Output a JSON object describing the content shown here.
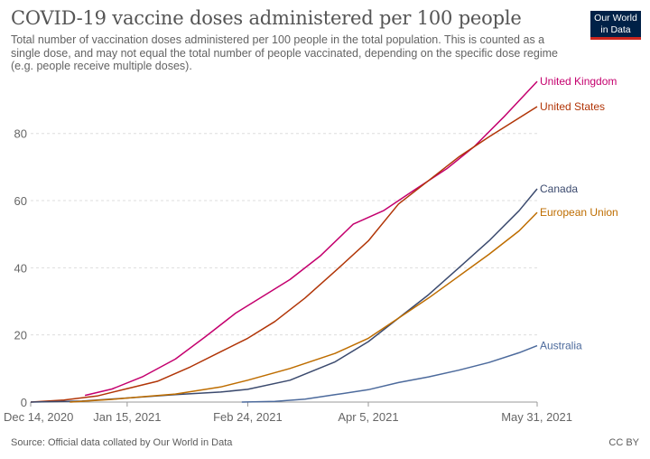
{
  "header": {
    "title": "COVID-19 vaccine doses administered per 100 people",
    "subtitle": "Total number of vaccination doses administered per 100 people in the total population. This is counted as a single dose, and may not equal the total number of people vaccinated, depending on the specific dose regime (e.g. people receive multiple doses)."
  },
  "logo": {
    "line1": "Our World",
    "line2": "in Data",
    "background": "#002147",
    "accent": "#ce261e"
  },
  "footer": {
    "source": "Source: Official data collated by Our World in Data",
    "license": "CC BY"
  },
  "chart_data": {
    "type": "line",
    "title": "COVID-19 vaccine doses administered per 100 people",
    "xlabel": "",
    "ylabel": "",
    "x_range": [
      "2020-12-14",
      "2021-05-31"
    ],
    "ylim": [
      0,
      95
    ],
    "y_ticks": [
      0,
      20,
      40,
      60,
      80
    ],
    "x_ticks": [
      {
        "date": "2020-12-14",
        "label": "Dec 14, 2020"
      },
      {
        "date": "2021-01-15",
        "label": "Jan 15, 2021"
      },
      {
        "date": "2021-02-24",
        "label": "Feb 24, 2021"
      },
      {
        "date": "2021-04-05",
        "label": "Apr 5, 2021"
      },
      {
        "date": "2021-05-31",
        "label": "May 31, 2021"
      }
    ],
    "grid": "horizontal dashed",
    "legend": "line-end labels",
    "series": [
      {
        "name": "United Kingdom",
        "color": "#c4006e",
        "points": [
          [
            "2021-01-01",
            2.0
          ],
          [
            "2021-01-10",
            3.9
          ],
          [
            "2021-01-20",
            7.5
          ],
          [
            "2021-01-31",
            12.8
          ],
          [
            "2021-02-10",
            19.5
          ],
          [
            "2021-02-20",
            26.5
          ],
          [
            "2021-03-01",
            31.5
          ],
          [
            "2021-03-10",
            36.5
          ],
          [
            "2021-03-20",
            43.5
          ],
          [
            "2021-03-31",
            53.0
          ],
          [
            "2021-04-10",
            57.0
          ],
          [
            "2021-04-20",
            63.0
          ],
          [
            "2021-05-01",
            69.5
          ],
          [
            "2021-05-10",
            76.0
          ],
          [
            "2021-05-20",
            85.0
          ],
          [
            "2021-05-31",
            95.5
          ]
        ]
      },
      {
        "name": "United States",
        "color": "#b13507",
        "points": [
          [
            "2020-12-14",
            0.0
          ],
          [
            "2020-12-25",
            0.6
          ],
          [
            "2021-01-05",
            1.8
          ],
          [
            "2021-01-15",
            4.0
          ],
          [
            "2021-01-25",
            6.2
          ],
          [
            "2021-02-05",
            10.5
          ],
          [
            "2021-02-15",
            15.0
          ],
          [
            "2021-02-24",
            19.0
          ],
          [
            "2021-03-05",
            24.0
          ],
          [
            "2021-03-15",
            31.0
          ],
          [
            "2021-03-25",
            39.0
          ],
          [
            "2021-04-05",
            48.0
          ],
          [
            "2021-04-15",
            59.0
          ],
          [
            "2021-04-25",
            66.0
          ],
          [
            "2021-05-05",
            73.0
          ],
          [
            "2021-05-15",
            79.0
          ],
          [
            "2021-05-31",
            88.0
          ]
        ]
      },
      {
        "name": "Canada",
        "color": "#3b4a6e",
        "points": [
          [
            "2020-12-14",
            0.0
          ],
          [
            "2020-12-31",
            0.3
          ],
          [
            "2021-01-15",
            1.2
          ],
          [
            "2021-01-31",
            2.2
          ],
          [
            "2021-02-15",
            3.0
          ],
          [
            "2021-02-24",
            3.8
          ],
          [
            "2021-03-10",
            6.5
          ],
          [
            "2021-03-25",
            12.0
          ],
          [
            "2021-04-05",
            18.0
          ],
          [
            "2021-04-15",
            25.0
          ],
          [
            "2021-04-25",
            32.0
          ],
          [
            "2021-05-05",
            40.0
          ],
          [
            "2021-05-15",
            48.0
          ],
          [
            "2021-05-25",
            57.0
          ],
          [
            "2021-05-31",
            63.5
          ]
        ]
      },
      {
        "name": "European Union",
        "color": "#be6d00",
        "points": [
          [
            "2020-12-27",
            0.0
          ],
          [
            "2021-01-10",
            0.8
          ],
          [
            "2021-01-20",
            1.6
          ],
          [
            "2021-01-31",
            2.4
          ],
          [
            "2021-02-15",
            4.5
          ],
          [
            "2021-02-24",
            6.5
          ],
          [
            "2021-03-10",
            10.0
          ],
          [
            "2021-03-25",
            14.5
          ],
          [
            "2021-04-05",
            19.0
          ],
          [
            "2021-04-15",
            25.0
          ],
          [
            "2021-04-25",
            31.0
          ],
          [
            "2021-05-05",
            37.5
          ],
          [
            "2021-05-15",
            44.0
          ],
          [
            "2021-05-25",
            51.0
          ],
          [
            "2021-05-31",
            56.5
          ]
        ]
      },
      {
        "name": "Australia",
        "color": "#4c6a9c",
        "points": [
          [
            "2021-02-22",
            0.0
          ],
          [
            "2021-03-05",
            0.2
          ],
          [
            "2021-03-15",
            0.9
          ],
          [
            "2021-03-25",
            2.2
          ],
          [
            "2021-04-05",
            3.7
          ],
          [
            "2021-04-15",
            5.8
          ],
          [
            "2021-04-25",
            7.5
          ],
          [
            "2021-05-05",
            9.5
          ],
          [
            "2021-05-15",
            11.8
          ],
          [
            "2021-05-25",
            14.7
          ],
          [
            "2021-05-31",
            16.8
          ]
        ]
      }
    ]
  }
}
